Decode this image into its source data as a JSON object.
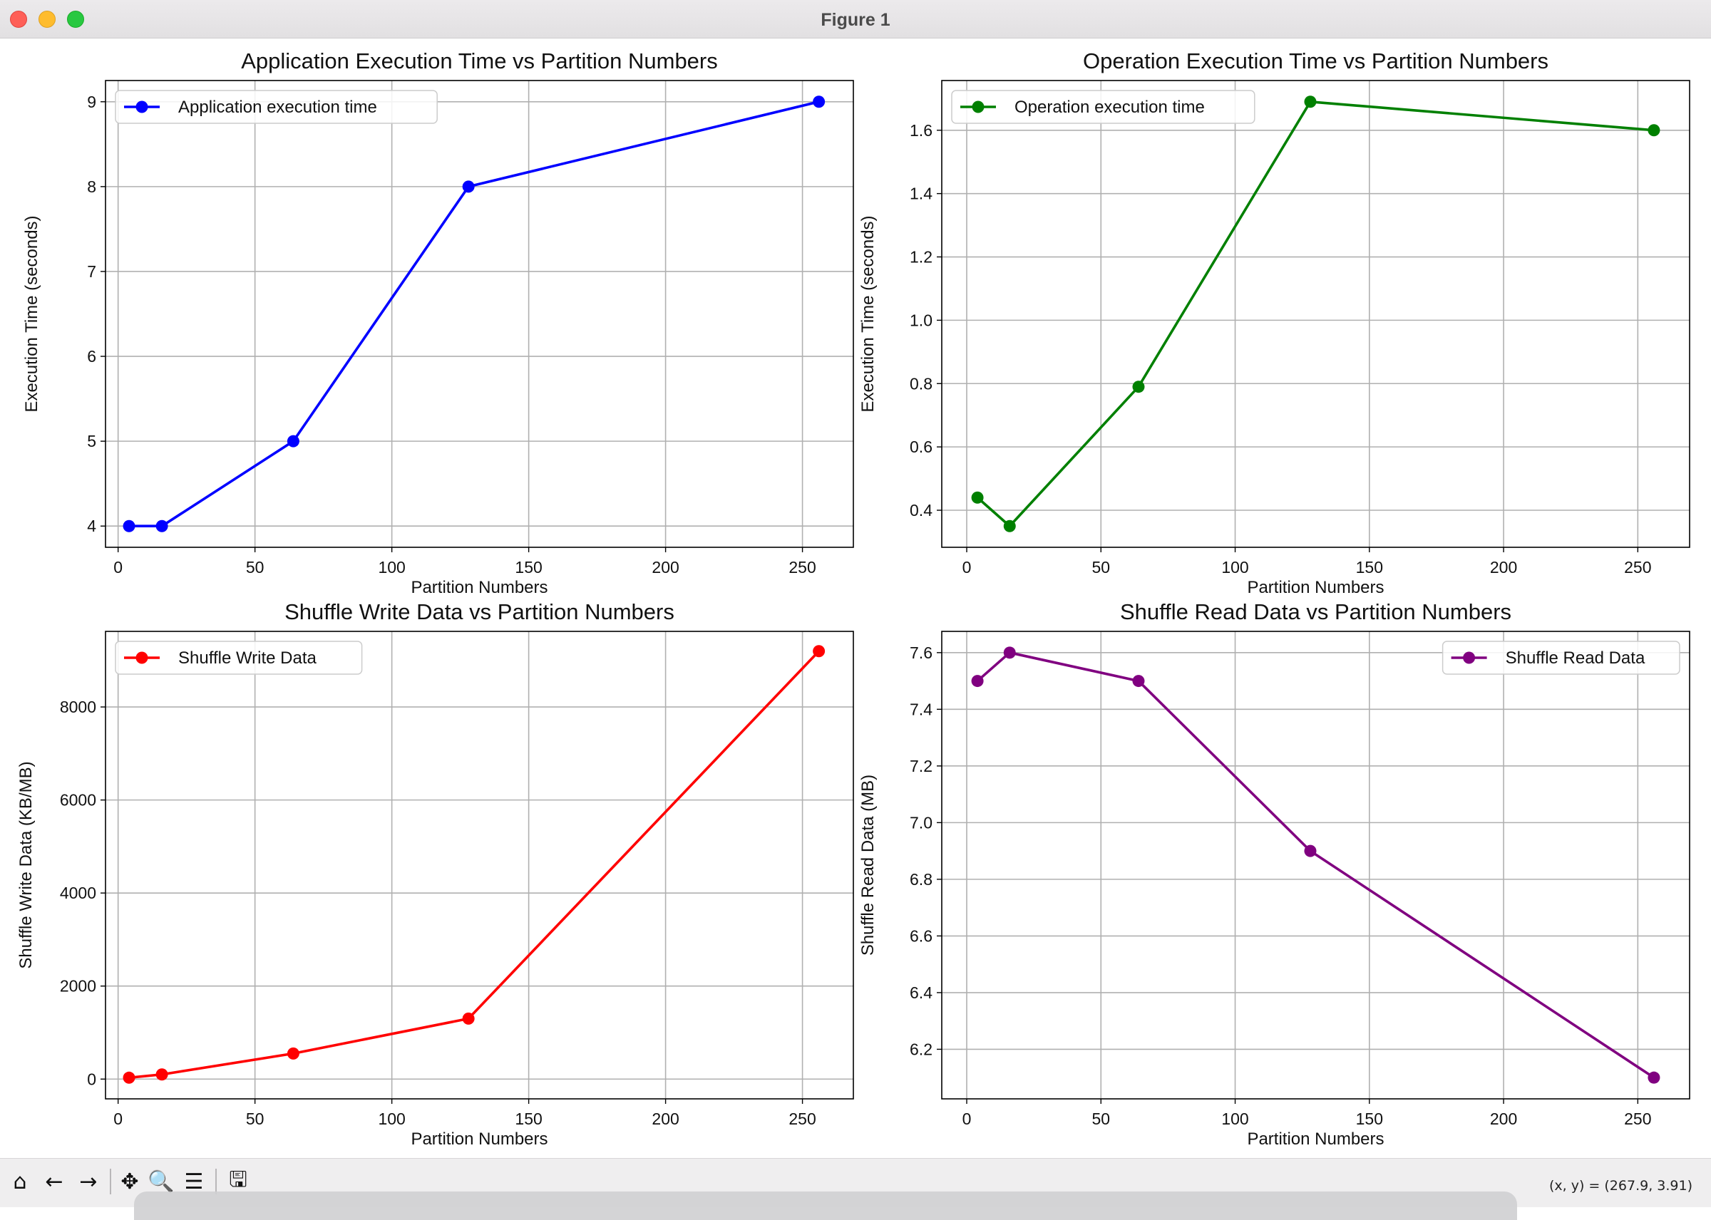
{
  "window": {
    "title": "Figure 1"
  },
  "toolbar": {
    "icons": [
      "home-icon",
      "back-arrow-icon",
      "forward-arrow-icon",
      "pan-icon",
      "zoom-icon",
      "configure-subplots-icon",
      "save-icon"
    ],
    "coords_readout": "(x, y) = (267.9, 3.91)"
  },
  "chart_data": [
    {
      "type": "line",
      "title": "Application Execution Time vs Partition Numbers",
      "xlabel": "Partition Numbers",
      "ylabel": "Execution Time (seconds)",
      "xlim": [
        -4.6,
        268.6
      ],
      "ylim": [
        3.75,
        9.25
      ],
      "xticks": [
        0,
        50,
        100,
        150,
        200,
        250
      ],
      "yticks": [
        4,
        5,
        6,
        7,
        8,
        9
      ],
      "grid": true,
      "legend": "upper left",
      "series": [
        {
          "name": "Application execution time",
          "color": "#0000ff",
          "x": [
            4,
            16,
            64,
            128,
            256
          ],
          "y": [
            4,
            4,
            5,
            8,
            9
          ]
        }
      ]
    },
    {
      "type": "line",
      "title": "Operation Execution Time vs Partition Numbers",
      "xlabel": "Partition Numbers",
      "ylabel": "Execution Time (seconds)",
      "xlim": [
        -9.3,
        269.3
      ],
      "ylim": [
        0.283,
        1.757
      ],
      "xticks": [
        0,
        50,
        100,
        150,
        200,
        250
      ],
      "yticks": [
        0.4,
        0.6,
        0.8,
        1.0,
        1.2,
        1.4,
        1.6
      ],
      "ytick_labels": [
        "0.4",
        "0.6",
        "0.8",
        "1.0",
        "1.2",
        "1.4",
        "1.6"
      ],
      "grid": true,
      "legend": "upper left",
      "series": [
        {
          "name": "Operation execution time",
          "color": "#008000",
          "x": [
            4,
            16,
            64,
            128,
            256
          ],
          "y": [
            0.44,
            0.35,
            0.79,
            1.69,
            1.6
          ]
        }
      ]
    },
    {
      "type": "line",
      "title": "Shuffle Write Data vs Partition Numbers",
      "xlabel": "Partition Numbers",
      "ylabel": "Shuffle Write Data (KB/MB)",
      "xlim": [
        -4.6,
        268.6
      ],
      "ylim": [
        -425,
        9625
      ],
      "xticks": [
        0,
        50,
        100,
        150,
        200,
        250
      ],
      "yticks": [
        0,
        2000,
        4000,
        6000,
        8000
      ],
      "grid": true,
      "legend": "upper left",
      "series": [
        {
          "name": "Shuffle Write Data",
          "color": "#ff0000",
          "x": [
            4,
            16,
            64,
            128,
            256
          ],
          "y": [
            30,
            100,
            550,
            1300,
            9200
          ]
        }
      ]
    },
    {
      "type": "line",
      "title": "Shuffle Read Data vs Partition Numbers",
      "xlabel": "Partition Numbers",
      "ylabel": "Shuffle Read Data (MB)",
      "xlim": [
        -9.3,
        269.3
      ],
      "ylim": [
        6.025,
        7.675
      ],
      "xticks": [
        0,
        50,
        100,
        150,
        200,
        250
      ],
      "yticks": [
        6.2,
        6.4,
        6.6,
        6.8,
        7.0,
        7.2,
        7.4,
        7.6
      ],
      "ytick_labels": [
        "6.2",
        "6.4",
        "6.6",
        "6.8",
        "7.0",
        "7.2",
        "7.4",
        "7.6"
      ],
      "grid": true,
      "legend": "upper right",
      "series": [
        {
          "name": "Shuffle Read Data",
          "color": "#800080",
          "x": [
            4,
            16,
            64,
            128,
            256
          ],
          "y": [
            7.5,
            7.6,
            7.5,
            6.9,
            6.1
          ]
        }
      ]
    }
  ]
}
